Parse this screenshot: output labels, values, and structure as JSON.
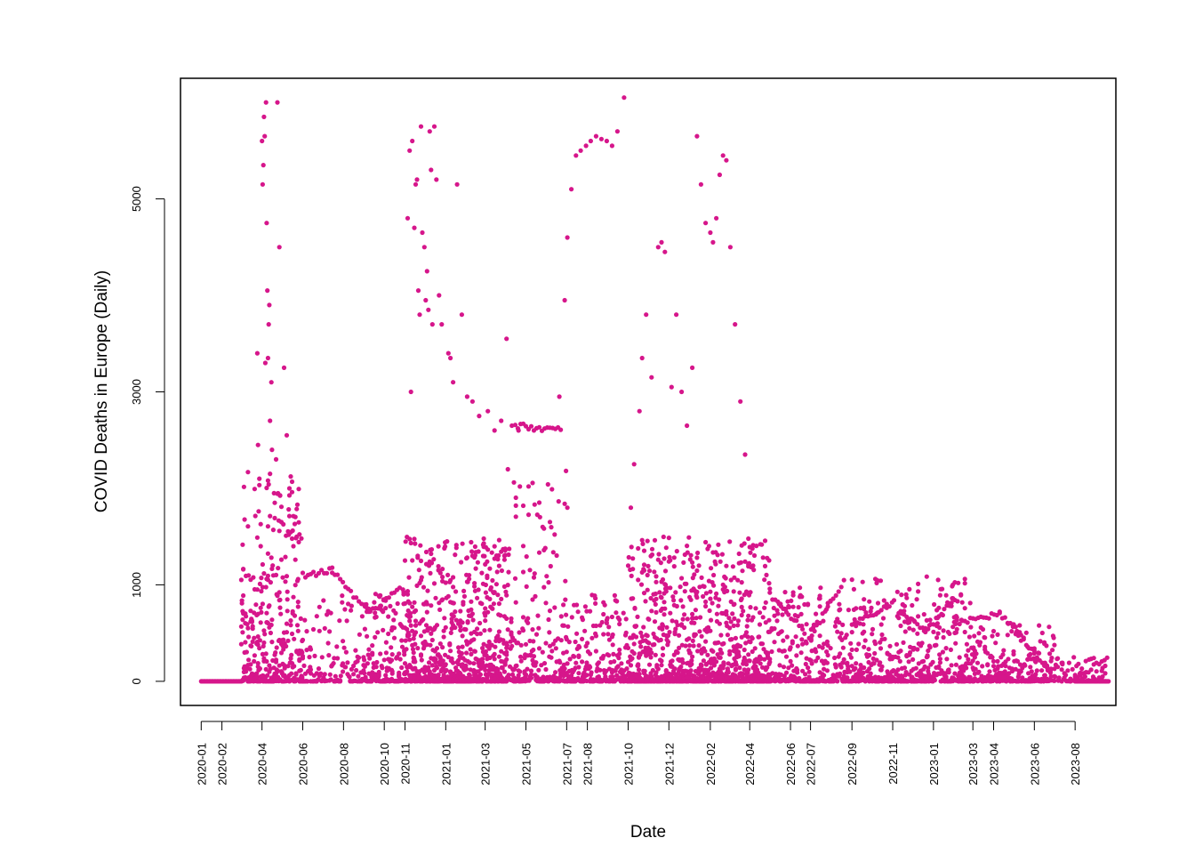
{
  "chart_data": {
    "type": "scatter",
    "title": "",
    "xlabel": "Date",
    "ylabel": "COVID Deaths in Europe (Daily)",
    "marker_color": "#d6168b",
    "xlim": [
      "2019-12-01",
      "2023-10-01"
    ],
    "ylim": [
      -250,
      6250
    ],
    "y_ticks": [
      0,
      1000,
      3000,
      5000
    ],
    "x_ticks": [
      "2020-01",
      "2020-02",
      "2020-04",
      "2020-06",
      "2020-08",
      "2020-10",
      "2020-11",
      "2021-01",
      "2021-03",
      "2021-05",
      "2021-07",
      "2021-08",
      "2021-10",
      "2021-12",
      "2022-02",
      "2022-04",
      "2022-06",
      "2022-07",
      "2022-09",
      "2022-11",
      "2023-01",
      "2023-03",
      "2023-04",
      "2023-06",
      "2023-08"
    ],
    "grid": false,
    "legend": "none",
    "highlight_points": [
      {
        "x": "2020-03-25",
        "y": 3400
      },
      {
        "x": "2020-03-26",
        "y": 2450
      },
      {
        "x": "2020-03-28",
        "y": 2100
      },
      {
        "x": "2020-03-30",
        "y": 1400
      },
      {
        "x": "2020-04-01",
        "y": 5600
      },
      {
        "x": "2020-04-02",
        "y": 5150
      },
      {
        "x": "2020-04-03",
        "y": 5350
      },
      {
        "x": "2020-04-04",
        "y": 5850
      },
      {
        "x": "2020-04-05",
        "y": 5650
      },
      {
        "x": "2020-04-06",
        "y": 3300
      },
      {
        "x": "2020-04-07",
        "y": 6000
      },
      {
        "x": "2020-04-08",
        "y": 4750
      },
      {
        "x": "2020-04-09",
        "y": 4050
      },
      {
        "x": "2020-04-10",
        "y": 3350
      },
      {
        "x": "2020-04-11",
        "y": 3700
      },
      {
        "x": "2020-04-12",
        "y": 3900
      },
      {
        "x": "2020-04-13",
        "y": 2700
      },
      {
        "x": "2020-04-15",
        "y": 3100
      },
      {
        "x": "2020-04-16",
        "y": 2400
      },
      {
        "x": "2020-04-17",
        "y": 1200
      },
      {
        "x": "2020-04-19",
        "y": 1950
      },
      {
        "x": "2020-04-20",
        "y": 1850
      },
      {
        "x": "2020-04-22",
        "y": 2300
      },
      {
        "x": "2020-04-24",
        "y": 6000
      },
      {
        "x": "2020-04-27",
        "y": 4500
      },
      {
        "x": "2020-04-30",
        "y": 1650
      },
      {
        "x": "2020-05-04",
        "y": 3250
      },
      {
        "x": "2020-05-08",
        "y": 2550
      },
      {
        "x": "2020-05-12",
        "y": 2000
      },
      {
        "x": "2020-05-18",
        "y": 1400
      },
      {
        "x": "2020-11-05",
        "y": 4800
      },
      {
        "x": "2020-11-08",
        "y": 5500
      },
      {
        "x": "2020-11-10",
        "y": 3000
      },
      {
        "x": "2020-11-12",
        "y": 5600
      },
      {
        "x": "2020-11-15",
        "y": 4700
      },
      {
        "x": "2020-11-17",
        "y": 5150
      },
      {
        "x": "2020-11-19",
        "y": 5200
      },
      {
        "x": "2020-11-21",
        "y": 4050
      },
      {
        "x": "2020-11-23",
        "y": 3800
      },
      {
        "x": "2020-11-25",
        "y": 5750
      },
      {
        "x": "2020-11-27",
        "y": 4650
      },
      {
        "x": "2020-11-30",
        "y": 4500
      },
      {
        "x": "2020-12-02",
        "y": 3950
      },
      {
        "x": "2020-12-04",
        "y": 4250
      },
      {
        "x": "2020-12-06",
        "y": 3850
      },
      {
        "x": "2020-12-08",
        "y": 5700
      },
      {
        "x": "2020-12-10",
        "y": 5300
      },
      {
        "x": "2020-12-12",
        "y": 3700
      },
      {
        "x": "2020-12-15",
        "y": 5750
      },
      {
        "x": "2020-12-18",
        "y": 5200
      },
      {
        "x": "2020-12-22",
        "y": 4000
      },
      {
        "x": "2020-12-26",
        "y": 3700
      },
      {
        "x": "2021-01-05",
        "y": 3400
      },
      {
        "x": "2021-01-08",
        "y": 3350
      },
      {
        "x": "2021-01-12",
        "y": 3100
      },
      {
        "x": "2021-01-18",
        "y": 5150
      },
      {
        "x": "2021-01-25",
        "y": 3800
      },
      {
        "x": "2021-02-02",
        "y": 2950
      },
      {
        "x": "2021-02-10",
        "y": 2900
      },
      {
        "x": "2021-02-20",
        "y": 2750
      },
      {
        "x": "2021-03-05",
        "y": 2800
      },
      {
        "x": "2021-03-15",
        "y": 2600
      },
      {
        "x": "2021-03-25",
        "y": 2700
      },
      {
        "x": "2021-04-02",
        "y": 3550
      },
      {
        "x": "2021-04-10",
        "y": 2650
      },
      {
        "x": "2021-04-20",
        "y": 2600
      },
      {
        "x": "2021-06-20",
        "y": 2950
      },
      {
        "x": "2021-06-28",
        "y": 3950
      },
      {
        "x": "2021-07-02",
        "y": 4600
      },
      {
        "x": "2021-07-08",
        "y": 5100
      },
      {
        "x": "2021-07-15",
        "y": 5450
      },
      {
        "x": "2021-07-22",
        "y": 5500
      },
      {
        "x": "2021-07-30",
        "y": 5550
      },
      {
        "x": "2021-08-06",
        "y": 5600
      },
      {
        "x": "2021-08-14",
        "y": 5650
      },
      {
        "x": "2021-08-22",
        "y": 5620
      },
      {
        "x": "2021-08-30",
        "y": 5600
      },
      {
        "x": "2021-09-07",
        "y": 5550
      },
      {
        "x": "2021-09-15",
        "y": 5700
      },
      {
        "x": "2021-09-25",
        "y": 6050
      },
      {
        "x": "2021-10-05",
        "y": 1800
      },
      {
        "x": "2021-10-10",
        "y": 2250
      },
      {
        "x": "2021-10-18",
        "y": 2800
      },
      {
        "x": "2021-10-22",
        "y": 3350
      },
      {
        "x": "2021-10-28",
        "y": 3800
      },
      {
        "x": "2021-11-05",
        "y": 3150
      },
      {
        "x": "2021-11-15",
        "y": 4500
      },
      {
        "x": "2021-11-20",
        "y": 4550
      },
      {
        "x": "2021-11-25",
        "y": 4450
      },
      {
        "x": "2021-12-05",
        "y": 3050
      },
      {
        "x": "2021-12-12",
        "y": 3800
      },
      {
        "x": "2021-12-20",
        "y": 3000
      },
      {
        "x": "2021-12-28",
        "y": 2650
      },
      {
        "x": "2022-01-05",
        "y": 3250
      },
      {
        "x": "2022-01-12",
        "y": 5650
      },
      {
        "x": "2022-01-18",
        "y": 5150
      },
      {
        "x": "2022-01-25",
        "y": 4750
      },
      {
        "x": "2022-02-01",
        "y": 4650
      },
      {
        "x": "2022-02-05",
        "y": 4550
      },
      {
        "x": "2022-02-10",
        "y": 4800
      },
      {
        "x": "2022-02-15",
        "y": 5250
      },
      {
        "x": "2022-02-20",
        "y": 5450
      },
      {
        "x": "2022-02-25",
        "y": 5400
      },
      {
        "x": "2022-03-03",
        "y": 4500
      },
      {
        "x": "2022-03-10",
        "y": 3700
      },
      {
        "x": "2022-03-18",
        "y": 2900
      },
      {
        "x": "2022-03-25",
        "y": 2350
      }
    ],
    "envelopes": [
      {
        "start": "2020-03-01",
        "end": "2020-05-31",
        "peak": 2200,
        "density": 12
      },
      {
        "start": "2020-06-01",
        "end": "2020-08-31",
        "peak": 900,
        "density": 4
      },
      {
        "start": "2020-09-01",
        "end": "2020-10-31",
        "peak": 1000,
        "density": 8
      },
      {
        "start": "2020-11-01",
        "end": "2021-03-31",
        "peak": 1500,
        "density": 14
      },
      {
        "start": "2021-04-01",
        "end": "2021-06-30",
        "peak": 2200,
        "density": 8
      },
      {
        "start": "2021-07-01",
        "end": "2021-09-30",
        "peak": 900,
        "density": 7
      },
      {
        "start": "2021-10-01",
        "end": "2022-04-30",
        "peak": 1500,
        "density": 14
      },
      {
        "start": "2022-05-01",
        "end": "2022-08-31",
        "peak": 1000,
        "density": 7
      },
      {
        "start": "2022-09-01",
        "end": "2023-02-28",
        "peak": 1100,
        "density": 8
      },
      {
        "start": "2023-03-01",
        "end": "2023-06-30",
        "peak": 600,
        "density": 6
      },
      {
        "start": "2023-07-01",
        "end": "2023-09-15",
        "peak": 250,
        "density": 3
      }
    ],
    "trails": [
      {
        "start": "2020-06-01",
        "end": "2020-07-15",
        "y0": 1100,
        "y1": 1150
      },
      {
        "start": "2020-07-15",
        "end": "2020-09-10",
        "y0": 1150,
        "y1": 700
      },
      {
        "start": "2020-09-10",
        "end": "2020-10-25",
        "y0": 700,
        "y1": 1000
      },
      {
        "start": "2021-04-15",
        "end": "2021-06-25",
        "y0": 2650,
        "y1": 2600
      },
      {
        "start": "2022-05-01",
        "end": "2022-06-25",
        "y0": 900,
        "y1": 500
      },
      {
        "start": "2022-06-25",
        "end": "2022-08-20",
        "y0": 400,
        "y1": 1050
      },
      {
        "start": "2022-09-01",
        "end": "2022-11-01",
        "y0": 600,
        "y1": 800
      },
      {
        "start": "2022-11-10",
        "end": "2022-12-20",
        "y0": 700,
        "y1": 550
      },
      {
        "start": "2022-12-20",
        "end": "2023-01-31",
        "y0": 500,
        "y1": 850
      },
      {
        "start": "2023-02-01",
        "end": "2023-04-10",
        "y0": 600,
        "y1": 700
      },
      {
        "start": "2023-04-10",
        "end": "2023-06-25",
        "y0": 700,
        "y1": 100
      },
      {
        "start": "2023-08-01",
        "end": "2023-09-20",
        "y0": 20,
        "y1": 250
      }
    ]
  }
}
